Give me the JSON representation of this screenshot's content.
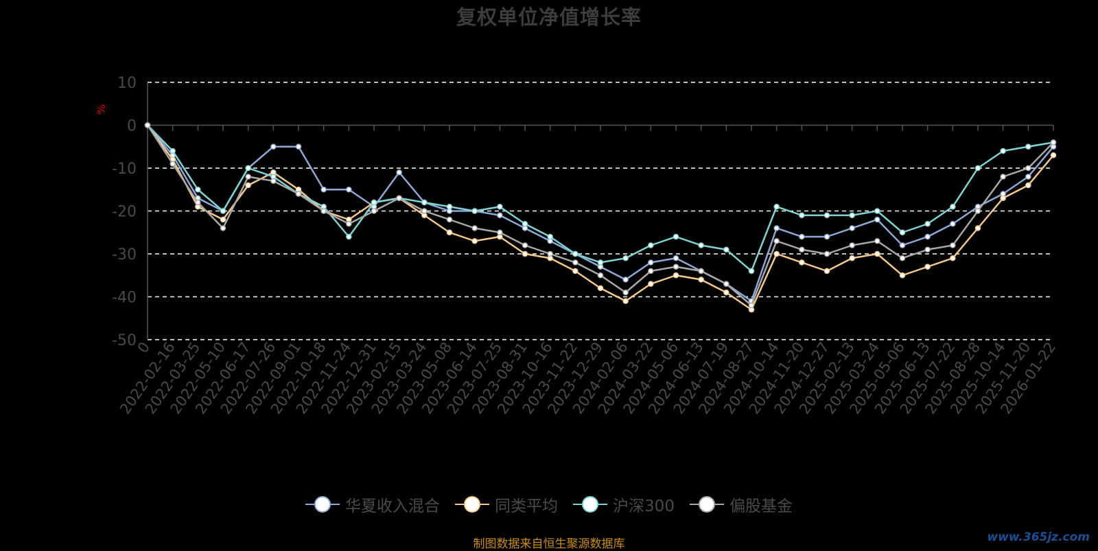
{
  "chart_data": {
    "type": "line",
    "title": "复权单位净值增长率",
    "ylabel": "%",
    "xlabel": "",
    "ylim": [
      -50,
      10
    ],
    "yticks": [
      10,
      0,
      -10,
      -20,
      -30,
      -40,
      -50
    ],
    "grid": "horizontal-dashed",
    "legend_position": "bottom",
    "x_ticks": [
      "0",
      "2022-02-16",
      "2022-03-25",
      "2022-05-10",
      "2022-06-17",
      "2022-07-26",
      "2022-09-01",
      "2022-10-18",
      "2022-11-24",
      "2022-12-31",
      "2023-02-15",
      "2023-03-24",
      "2023-05-08",
      "2023-06-14",
      "2023-07-25",
      "2023-08-31",
      "2023-10-16",
      "2023-11-22",
      "2023-12-29",
      "2024-02-06",
      "2024-03-22",
      "2024-05-06",
      "2024-06-13",
      "2024-07-19",
      "2024-08-27",
      "2024-10-14",
      "2024-11-20",
      "2024-12-27",
      "2025-02-13",
      "2025-03-24",
      "2025-05-06",
      "2025-06-13",
      "2025-07-22",
      "2025-08-28",
      "2025-10-14",
      "2025-11-20",
      "2026-01-22"
    ],
    "series": [
      {
        "name": "华夏收入混合",
        "color": "#8ea9d8",
        "values": [
          0,
          -7,
          -17,
          -20,
          -10,
          -5,
          -5,
          -15,
          -15,
          -19,
          -11,
          -18,
          -20,
          -20,
          -21,
          -24,
          -27,
          -30,
          -33,
          -36,
          -32,
          -31,
          -34,
          -37,
          -41,
          -24,
          -26,
          -26,
          -24,
          -22,
          -28,
          -26,
          -23,
          -19,
          -16,
          -12,
          -5
        ]
      },
      {
        "name": "同类平均",
        "color": "#f5c98b",
        "values": [
          0,
          -8,
          -19,
          -22,
          -14,
          -11,
          -15,
          -20,
          -22,
          -18,
          -17,
          -21,
          -25,
          -27,
          -26,
          -30,
          -31,
          -34,
          -38,
          -41,
          -37,
          -35,
          -36,
          -39,
          -43,
          -30,
          -32,
          -34,
          -31,
          -30,
          -35,
          -33,
          -31,
          -24,
          -17,
          -14,
          -7
        ]
      },
      {
        "name": "沪深300",
        "color": "#7fd3d3",
        "values": [
          0,
          -6,
          -15,
          -20,
          -10,
          -12,
          -16,
          -19,
          -26,
          -18,
          -17,
          -18,
          -19,
          -20,
          -19,
          -23,
          -26,
          -30,
          -32,
          -31,
          -28,
          -26,
          -28,
          -29,
          -34,
          -19,
          -21,
          -21,
          -21,
          -20,
          -25,
          -23,
          -19,
          -10,
          -6,
          -5,
          -4
        ]
      },
      {
        "name": "偏股基金",
        "color": "#a8a8a8",
        "values": [
          0,
          -9,
          -18,
          -24,
          -12,
          -13,
          -16,
          -20,
          -23,
          -20,
          -17,
          -20,
          -22,
          -24,
          -25,
          -28,
          -30,
          -32,
          -35,
          -39,
          -34,
          -33,
          -34,
          -37,
          -42,
          -27,
          -29,
          -30,
          -28,
          -27,
          -31,
          -29,
          -28,
          -20,
          -12,
          -10,
          -4
        ]
      }
    ]
  },
  "footer": {
    "source": "制图数据来自恒生聚源数据库",
    "watermark": "www.365jz.com"
  }
}
